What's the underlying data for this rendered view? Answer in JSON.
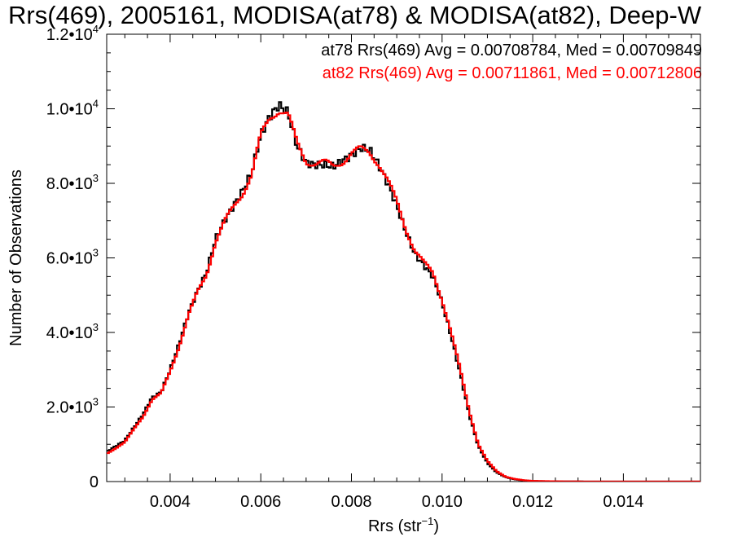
{
  "chart_data": {
    "type": "line",
    "title": "Rrs(469), 2005161, MODISA(at78) & MODISA(at82), Deep-W",
    "xlabel_main": "Rrs (str",
    "xlabel_sup": "−1",
    "xlabel_tail": ")",
    "ylabel": "Number of Observations",
    "xlim": [
      0.0026,
      0.0157
    ],
    "ylim": [
      0,
      12000
    ],
    "x_ticks": [
      {
        "value": 0.004,
        "label": "0.004"
      },
      {
        "value": 0.006,
        "label": "0.006"
      },
      {
        "value": 0.008,
        "label": "0.008"
      },
      {
        "value": 0.01,
        "label": "0.010"
      },
      {
        "value": 0.012,
        "label": "0.012"
      },
      {
        "value": 0.014,
        "label": "0.014"
      }
    ],
    "y_ticks": [
      {
        "value": 0,
        "mant": "0",
        "exp": ""
      },
      {
        "value": 2000,
        "mant": "2.0•10",
        "exp": "3"
      },
      {
        "value": 4000,
        "mant": "4.0•10",
        "exp": "3"
      },
      {
        "value": 6000,
        "mant": "6.0•10",
        "exp": "3"
      },
      {
        "value": 8000,
        "mant": "8.0•10",
        "exp": "3"
      },
      {
        "value": 10000,
        "mant": "1.0•10",
        "exp": "4"
      },
      {
        "value": 12000,
        "mant": "1.2•10",
        "exp": "4"
      }
    ],
    "annotations": [
      {
        "text": "at78 Rrs(469) Avg = 0.00708784, Med = 0.00709849",
        "color": "#000000"
      },
      {
        "text": "at82 Rrs(469) Avg = 0.00711861, Med = 0.00712806",
        "color": "#ff0000"
      }
    ],
    "series": [
      {
        "name": "at78",
        "color": "#000000",
        "points": [
          [
            0.0026,
            800
          ],
          [
            0.003,
            1100
          ],
          [
            0.0034,
            1800
          ],
          [
            0.0036,
            2250
          ],
          [
            0.0038,
            2400
          ],
          [
            0.004,
            3000
          ],
          [
            0.0042,
            3700
          ],
          [
            0.0044,
            4500
          ],
          [
            0.0046,
            5100
          ],
          [
            0.0048,
            5600
          ],
          [
            0.005,
            6500
          ],
          [
            0.0052,
            7000
          ],
          [
            0.0054,
            7400
          ],
          [
            0.0056,
            7800
          ],
          [
            0.0058,
            8300
          ],
          [
            0.006,
            9300
          ],
          [
            0.0062,
            9800
          ],
          [
            0.0064,
            10100
          ],
          [
            0.0066,
            9900
          ],
          [
            0.0068,
            9000
          ],
          [
            0.007,
            8550
          ],
          [
            0.0072,
            8500
          ],
          [
            0.0074,
            8500
          ],
          [
            0.0076,
            8450
          ],
          [
            0.0078,
            8600
          ],
          [
            0.008,
            8750
          ],
          [
            0.0082,
            8950
          ],
          [
            0.0084,
            8900
          ],
          [
            0.0086,
            8500
          ],
          [
            0.0088,
            8000
          ],
          [
            0.009,
            7400
          ],
          [
            0.0092,
            6700
          ],
          [
            0.0094,
            6100
          ],
          [
            0.0096,
            5800
          ],
          [
            0.0098,
            5500
          ],
          [
            0.01,
            4800
          ],
          [
            0.0102,
            3900
          ],
          [
            0.0104,
            2900
          ],
          [
            0.0106,
            1800
          ],
          [
            0.0108,
            950
          ],
          [
            0.011,
            500
          ],
          [
            0.0112,
            250
          ],
          [
            0.0114,
            120
          ],
          [
            0.0116,
            60
          ],
          [
            0.0118,
            30
          ],
          [
            0.012,
            15
          ],
          [
            0.0125,
            5
          ],
          [
            0.013,
            2
          ],
          [
            0.014,
            0
          ],
          [
            0.0157,
            0
          ]
        ]
      },
      {
        "name": "at82",
        "color": "#ff0000",
        "points": [
          [
            0.0026,
            750
          ],
          [
            0.003,
            1050
          ],
          [
            0.0034,
            1750
          ],
          [
            0.0036,
            2200
          ],
          [
            0.0038,
            2350
          ],
          [
            0.004,
            2950
          ],
          [
            0.0042,
            3650
          ],
          [
            0.0044,
            4450
          ],
          [
            0.0046,
            5050
          ],
          [
            0.0048,
            5550
          ],
          [
            0.005,
            6450
          ],
          [
            0.0052,
            6950
          ],
          [
            0.0054,
            7350
          ],
          [
            0.0056,
            7750
          ],
          [
            0.0058,
            8250
          ],
          [
            0.006,
            9250
          ],
          [
            0.0062,
            9750
          ],
          [
            0.0064,
            10000
          ],
          [
            0.0066,
            9850
          ],
          [
            0.0068,
            9050
          ],
          [
            0.007,
            8600
          ],
          [
            0.0072,
            8550
          ],
          [
            0.0074,
            8550
          ],
          [
            0.0076,
            8450
          ],
          [
            0.0078,
            8600
          ],
          [
            0.008,
            8800
          ],
          [
            0.0082,
            8900
          ],
          [
            0.0084,
            8850
          ],
          [
            0.0086,
            8550
          ],
          [
            0.0088,
            8050
          ],
          [
            0.009,
            7500
          ],
          [
            0.0092,
            6800
          ],
          [
            0.0094,
            6200
          ],
          [
            0.0096,
            5850
          ],
          [
            0.0098,
            5600
          ],
          [
            0.01,
            4900
          ],
          [
            0.0102,
            4000
          ],
          [
            0.0104,
            3000
          ],
          [
            0.0106,
            1900
          ],
          [
            0.0108,
            1000
          ],
          [
            0.011,
            550
          ],
          [
            0.0112,
            280
          ],
          [
            0.0114,
            130
          ],
          [
            0.0116,
            70
          ],
          [
            0.0118,
            35
          ],
          [
            0.012,
            18
          ],
          [
            0.0125,
            6
          ],
          [
            0.013,
            2
          ],
          [
            0.014,
            0
          ],
          [
            0.0157,
            0
          ]
        ]
      }
    ],
    "grid": false
  }
}
